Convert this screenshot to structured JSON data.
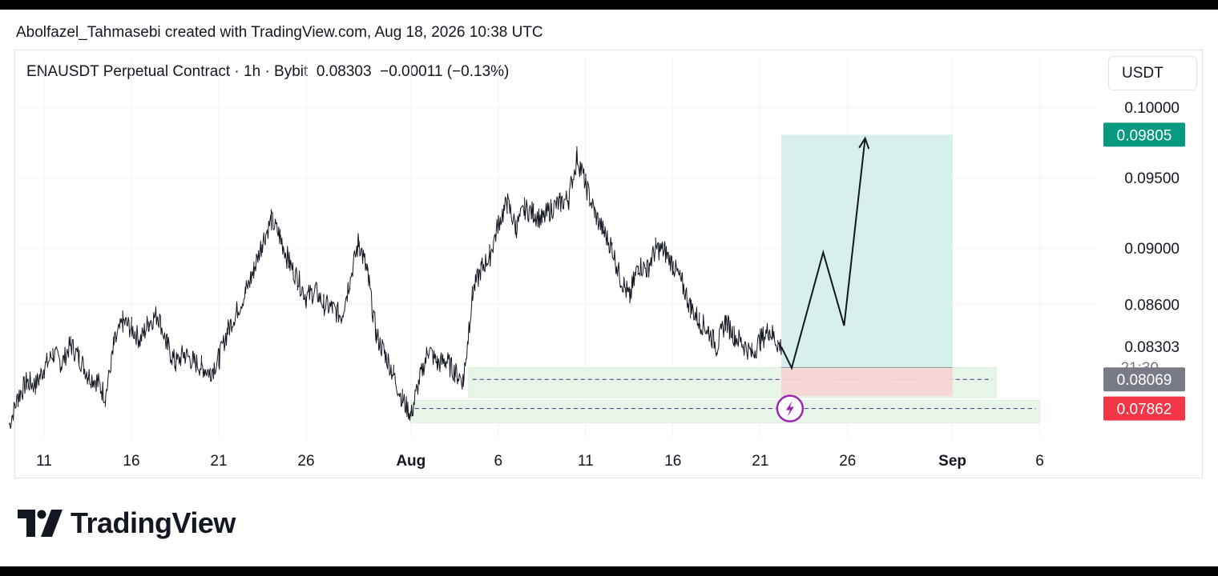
{
  "header": {
    "credit": "Abolfazel_Tahmasebi created with TradingView.com, Aug 18, 2026 10:38 UTC"
  },
  "legend": {
    "symbol": "ENAUSDT Perpetual Contract · 1h · Bybit",
    "price": "0.08303",
    "change": "−0.00011 (−0.13%)"
  },
  "currency": "USDT",
  "brand": {
    "name": "TradingView"
  },
  "colors": {
    "up": "#089981",
    "down": "#f23645",
    "grey": "#787b86",
    "zone": "#e8f5e9",
    "profit": "#d0ede8",
    "loss": "#f6d5d3",
    "signal": "#9c27b0"
  },
  "chart_data": {
    "type": "line",
    "y_range": [
      0.0765,
      0.1008
    ],
    "y_ticks": [
      {
        "label": "0.10000",
        "value": 0.1
      },
      {
        "label": "0.09500",
        "value": 0.095
      },
      {
        "label": "0.09000",
        "value": 0.09
      },
      {
        "label": "0.08600",
        "value": 0.086
      }
    ],
    "x_ticks": [
      {
        "label": "11",
        "day": 11,
        "bold": false
      },
      {
        "label": "16",
        "day": 16,
        "bold": false
      },
      {
        "label": "21",
        "day": 21,
        "bold": false
      },
      {
        "label": "26",
        "day": 26,
        "bold": false
      },
      {
        "label": "Aug",
        "day": 32,
        "bold": true
      },
      {
        "label": "6",
        "day": 37,
        "bold": false
      },
      {
        "label": "11",
        "day": 42,
        "bold": false
      },
      {
        "label": "16",
        "day": 47,
        "bold": false
      },
      {
        "label": "21",
        "day": 52,
        "bold": false
      },
      {
        "label": "26",
        "day": 57,
        "bold": false
      },
      {
        "label": "Sep",
        "day": 63,
        "bold": true
      },
      {
        "label": "6",
        "day": 68,
        "bold": false
      }
    ],
    "price_series": [
      [
        9.0,
        0.0775
      ],
      [
        9.5,
        0.0795
      ],
      [
        10.0,
        0.0805
      ],
      [
        10.5,
        0.0803
      ],
      [
        11.0,
        0.0815
      ],
      [
        11.5,
        0.0825
      ],
      [
        12.0,
        0.0818
      ],
      [
        12.5,
        0.0832
      ],
      [
        13.0,
        0.0822
      ],
      [
        13.5,
        0.081
      ],
      [
        14.0,
        0.0806
      ],
      [
        14.5,
        0.0795
      ],
      [
        15.0,
        0.0832
      ],
      [
        15.5,
        0.0848
      ],
      [
        16.0,
        0.0843
      ],
      [
        16.5,
        0.0835
      ],
      [
        17.0,
        0.0848
      ],
      [
        17.5,
        0.0853
      ],
      [
        18.0,
        0.0832
      ],
      [
        18.5,
        0.0818
      ],
      [
        19.0,
        0.0825
      ],
      [
        19.5,
        0.082
      ],
      [
        20.0,
        0.0816
      ],
      [
        20.5,
        0.0812
      ],
      [
        21.0,
        0.0822
      ],
      [
        21.5,
        0.0842
      ],
      [
        22.0,
        0.0855
      ],
      [
        22.5,
        0.0868
      ],
      [
        23.0,
        0.0885
      ],
      [
        23.5,
        0.0905
      ],
      [
        24.0,
        0.092
      ],
      [
        24.5,
        0.0908
      ],
      [
        25.0,
        0.089
      ],
      [
        25.5,
        0.0878
      ],
      [
        26.0,
        0.0865
      ],
      [
        26.5,
        0.087
      ],
      [
        27.0,
        0.086
      ],
      [
        27.5,
        0.0857
      ],
      [
        28.0,
        0.0852
      ],
      [
        28.5,
        0.0878
      ],
      [
        29.0,
        0.0905
      ],
      [
        29.5,
        0.0882
      ],
      [
        30.0,
        0.0838
      ],
      [
        30.5,
        0.0825
      ],
      [
        31.0,
        0.081
      ],
      [
        31.5,
        0.0792
      ],
      [
        32.0,
        0.0782
      ],
      [
        32.5,
        0.0808
      ],
      [
        33.0,
        0.0828
      ],
      [
        33.5,
        0.0818
      ],
      [
        34.0,
        0.082
      ],
      [
        34.5,
        0.0812
      ],
      [
        35.0,
        0.0806
      ],
      [
        35.5,
        0.0868
      ],
      [
        36.0,
        0.0885
      ],
      [
        36.5,
        0.0895
      ],
      [
        37.0,
        0.0918
      ],
      [
        37.5,
        0.0932
      ],
      [
        38.0,
        0.0915
      ],
      [
        38.5,
        0.0928
      ],
      [
        39.0,
        0.0925
      ],
      [
        39.5,
        0.092
      ],
      [
        40.0,
        0.0928
      ],
      [
        40.5,
        0.0932
      ],
      [
        41.0,
        0.0935
      ],
      [
        41.5,
        0.0965
      ],
      [
        42.0,
        0.0945
      ],
      [
        42.5,
        0.0925
      ],
      [
        43.0,
        0.0912
      ],
      [
        43.5,
        0.09
      ],
      [
        44.0,
        0.0878
      ],
      [
        44.5,
        0.0865
      ],
      [
        45.0,
        0.0888
      ],
      [
        45.5,
        0.0885
      ],
      [
        46.0,
        0.09
      ],
      [
        46.5,
        0.0898
      ],
      [
        47.0,
        0.0888
      ],
      [
        47.5,
        0.0875
      ],
      [
        48.0,
        0.0858
      ],
      [
        48.5,
        0.0848
      ],
      [
        49.0,
        0.0842
      ],
      [
        49.5,
        0.083
      ],
      [
        50.0,
        0.0848
      ],
      [
        50.5,
        0.0838
      ],
      [
        51.0,
        0.0832
      ],
      [
        51.5,
        0.0825
      ],
      [
        52.0,
        0.0835
      ],
      [
        52.5,
        0.0842
      ],
      [
        53.0,
        0.0832
      ],
      [
        53.2,
        0.083
      ]
    ],
    "projection": [
      [
        53.2,
        0.083
      ],
      [
        53.8,
        0.0815
      ],
      [
        55.6,
        0.0897
      ],
      [
        56.8,
        0.0845
      ],
      [
        58.0,
        0.0978
      ]
    ],
    "long_position": {
      "start_day": 53.2,
      "end_day": 63.0,
      "entry": 0.08153,
      "target": 0.09805,
      "stop": 0.0795
    },
    "zones": [
      {
        "start_day": 35.3,
        "end_day": 65.5,
        "top": 0.08153,
        "bottom": 0.0794,
        "level": 0.08069
      },
      {
        "start_day": 32.0,
        "end_day": 68.0,
        "top": 0.0792,
        "bottom": 0.0776,
        "level": 0.07862
      }
    ],
    "signal_day": 53.7,
    "price_labels": [
      {
        "label": "0.09805",
        "value": 0.09805,
        "style": "up"
      },
      {
        "label": "0.08303",
        "value": 0.08303,
        "style": "plain",
        "sub": "21:30"
      },
      {
        "label": "0.08069",
        "value": 0.08069,
        "style": "grey"
      },
      {
        "label": "0.07862",
        "value": 0.07862,
        "style": "down"
      }
    ]
  }
}
